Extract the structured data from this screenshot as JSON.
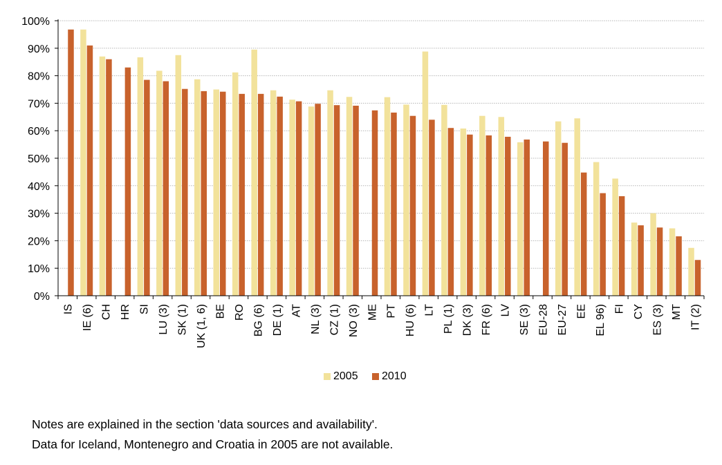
{
  "chart_data": {
    "type": "bar",
    "categories": [
      "IS",
      "IE (6)",
      "CH",
      "HR",
      "SI",
      "LU (3)",
      "SK (1)",
      "UK (1, 6)",
      "BE",
      "RO",
      "BG (6)",
      "DE (1)",
      "AT",
      "NL (3)",
      "CZ (1)",
      "NO (3)",
      "ME",
      "PT",
      "HU (6)",
      "LT",
      "PL (1)",
      "DK (3)",
      "FR (6)",
      "LV",
      "SE (3)",
      "EU-28",
      "EU-27",
      "EE",
      "EL 96)",
      "FI",
      "CY",
      "ES (3)",
      "MT",
      "IT (2)"
    ],
    "series": [
      {
        "name": "2005",
        "color": "#f2e29b",
        "values": [
          null,
          96.8,
          87.0,
          null,
          86.7,
          81.8,
          87.5,
          78.7,
          75.0,
          81.2,
          89.5,
          74.7,
          71.3,
          68.8,
          74.7,
          72.3,
          null,
          72.2,
          69.5,
          88.8,
          69.4,
          60.8,
          65.4,
          65.0,
          55.8,
          null,
          63.4,
          64.5,
          48.6,
          42.6,
          26.6,
          30.0,
          24.5,
          17.4
        ]
      },
      {
        "name": "2010",
        "color": "#c8622c",
        "values": [
          96.8,
          91.0,
          86.0,
          83.0,
          78.5,
          78.0,
          75.2,
          74.4,
          74.2,
          73.4,
          73.4,
          72.4,
          70.7,
          69.8,
          69.3,
          69.1,
          67.4,
          66.6,
          65.4,
          64.0,
          61.0,
          58.6,
          58.3,
          57.8,
          56.8,
          56.1,
          55.6,
          44.8,
          37.3,
          36.2,
          25.6,
          24.8,
          21.6,
          13.0
        ]
      }
    ],
    "ylim": [
      0,
      100
    ],
    "yticks": [
      0,
      10,
      20,
      30,
      40,
      50,
      60,
      70,
      80,
      90,
      100
    ],
    "ytick_labels": [
      "0%",
      "10%",
      "20%",
      "30%",
      "40%",
      "50%",
      "60%",
      "70%",
      "80%",
      "90%",
      "100%"
    ],
    "grid": true,
    "legend_position": "bottom"
  },
  "notes": [
    "Notes are explained in the section 'data sources and availability'.",
    "Data for Iceland, Montenegro and Croatia in 2005 are not available."
  ]
}
